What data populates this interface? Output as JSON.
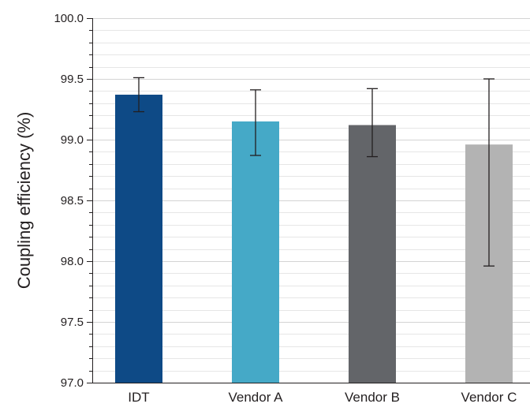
{
  "chart_data": {
    "type": "bar",
    "title": "",
    "xlabel": "",
    "ylabel": "Coupling efficiency (%)",
    "ylim": [
      97.0,
      100.0
    ],
    "yticks": [
      "97.0",
      "97.5",
      "98.0",
      "98.5",
      "99.0",
      "99.5",
      "100.0"
    ],
    "ytick_values": [
      97.0,
      97.5,
      98.0,
      98.5,
      99.0,
      99.5,
      100.0
    ],
    "minor_step": 0.1,
    "grid": true,
    "legend": "none",
    "categories": [
      "IDT",
      "Vendor A",
      "Vendor B",
      "Vendor C"
    ],
    "values": [
      99.37,
      99.15,
      99.12,
      98.96
    ],
    "error_low": [
      99.23,
      98.87,
      98.86,
      97.96
    ],
    "error_high": [
      99.51,
      99.41,
      99.42,
      99.5
    ],
    "colors": [
      "#0e4a86",
      "#45a9c7",
      "#636569",
      "#b3b3b3"
    ]
  }
}
